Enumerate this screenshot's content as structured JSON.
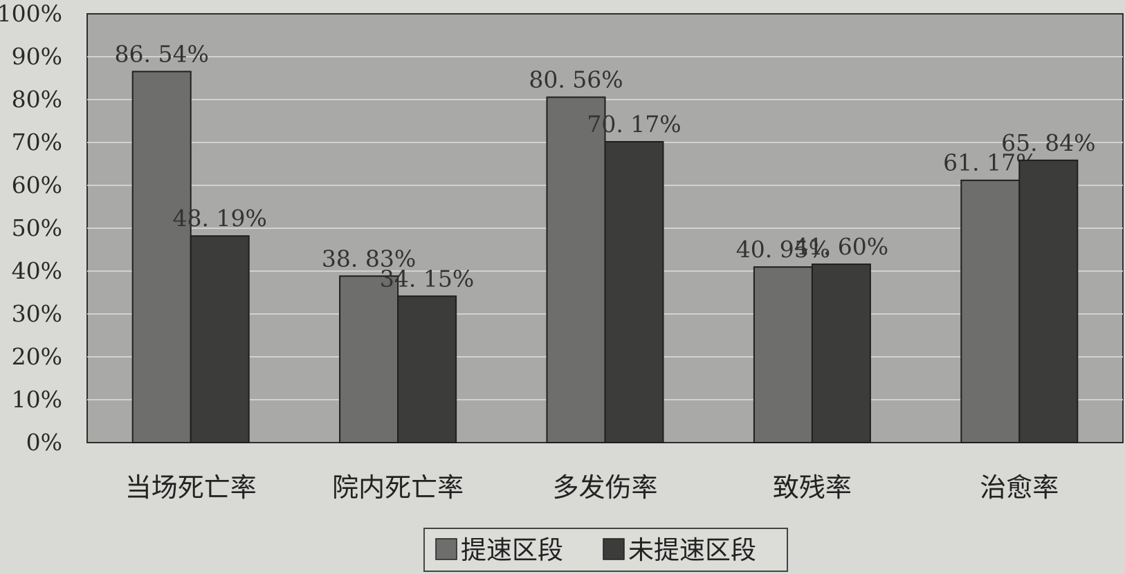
{
  "chart_data": {
    "type": "bar",
    "categories": [
      "当场死亡率",
      "院内死亡率",
      "多发伤率",
      "致残率",
      "治愈率"
    ],
    "series": [
      {
        "name": "提速区段",
        "values": [
          86.54,
          38.83,
          80.56,
          40.95,
          61.17
        ],
        "labels": [
          "86. 54%",
          "38. 83%",
          "80. 56%",
          "40. 95%",
          "61. 17%"
        ],
        "color": "#6e6e6c"
      },
      {
        "name": "未提速区段",
        "values": [
          48.19,
          34.15,
          70.17,
          41.6,
          65.84
        ],
        "labels": [
          "48. 19%",
          "34. 15%",
          "70. 17%",
          "41. 60%",
          "65. 84%"
        ],
        "color": "#3c3c3b"
      }
    ],
    "ylim": [
      0,
      100
    ],
    "yticks": [
      "0%",
      "10%",
      "20%",
      "30%",
      "40%",
      "50%",
      "60%",
      "70%",
      "80%",
      "90%",
      "100%"
    ],
    "grid": true,
    "legend_position": "bottom-center",
    "plot_background": "#a9a9a7"
  }
}
